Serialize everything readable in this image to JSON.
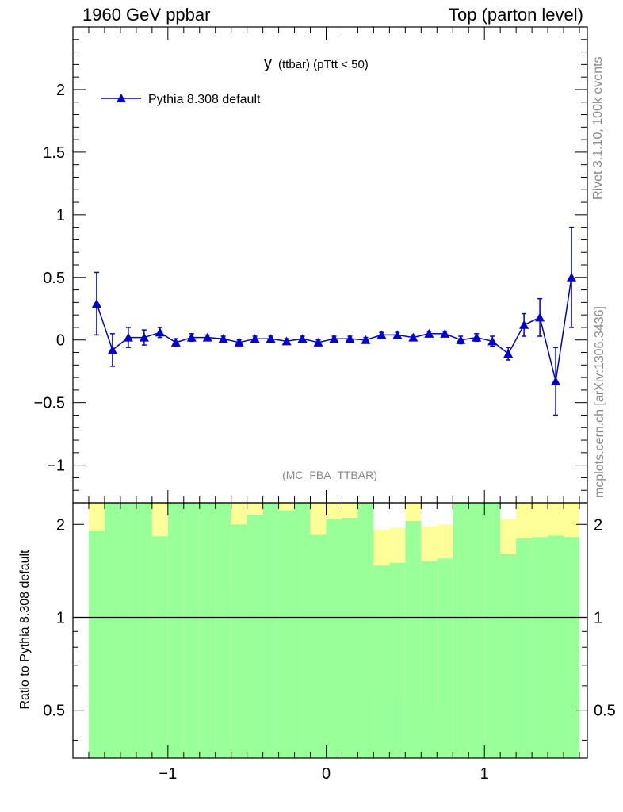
{
  "header": {
    "left": "1960 GeV ppbar",
    "right": "Top (parton level)"
  },
  "side": {
    "top": "Rivet 3.1.10,  100k events",
    "bottom": "mcplots.cern.ch [arXiv:1306.3436]"
  },
  "colors": {
    "series": "#0000cc",
    "band_inner": "#99ff99",
    "band_outer": "#ffff99",
    "axis": "#000000",
    "watermark": "#888888"
  },
  "chart_data": [
    {
      "type": "line",
      "title_main": "y",
      "title_sub": "(ttbar)  (pTtt < 50)",
      "watermark": "(MC_FBA_TTBAR)",
      "legend": "Pythia 8.308 default",
      "legend_position": "top-left",
      "marker": "triangle",
      "xlim": [
        -1.6,
        1.65
      ],
      "ylim": [
        -1.3,
        2.5
      ],
      "yticks": [
        -1,
        -0.5,
        0,
        0.5,
        1,
        1.5,
        2
      ],
      "ytick_labels": [
        "−1",
        "−0.5",
        "0",
        "0.5",
        "1",
        "1.5",
        "2"
      ],
      "series": [
        {
          "name": "Pythia 8.308 default",
          "x": [
            -1.45,
            -1.35,
            -1.25,
            -1.15,
            -1.05,
            -0.95,
            -0.85,
            -0.75,
            -0.65,
            -0.55,
            -0.45,
            -0.35,
            -0.25,
            -0.15,
            -0.05,
            0.05,
            0.15,
            0.25,
            0.35,
            0.45,
            0.55,
            0.65,
            0.75,
            0.85,
            0.95,
            1.05,
            1.15,
            1.25,
            1.35,
            1.45,
            1.55
          ],
          "y": [
            0.29,
            -0.08,
            0.02,
            0.02,
            0.06,
            -0.02,
            0.02,
            0.02,
            0.01,
            -0.02,
            0.01,
            0.01,
            -0.01,
            0.01,
            -0.02,
            0.01,
            0.01,
            0.0,
            0.04,
            0.04,
            0.02,
            0.05,
            0.05,
            0.0,
            0.02,
            -0.01,
            -0.11,
            0.12,
            0.18,
            -0.33,
            0.5
          ],
          "err": [
            0.25,
            0.13,
            0.08,
            0.06,
            0.04,
            0.03,
            0.03,
            0.02,
            0.02,
            0.02,
            0.02,
            0.02,
            0.02,
            0.02,
            0.02,
            0.02,
            0.02,
            0.02,
            0.02,
            0.02,
            0.02,
            0.02,
            0.02,
            0.03,
            0.03,
            0.04,
            0.05,
            0.09,
            0.15,
            0.27,
            0.4
          ]
        }
      ]
    },
    {
      "type": "ratio",
      "ylabel": "Ratio to Pythia 8.308 default",
      "yscale": "log",
      "ylim": [
        0.35,
        2.35
      ],
      "yticks": [
        0.5,
        1,
        2
      ],
      "ytick_labels": [
        "0.5",
        "1",
        "2"
      ],
      "xticks": [
        -1,
        0,
        1
      ],
      "xtick_labels": [
        "−1",
        "0",
        "1"
      ],
      "bins": [
        -1.5,
        -1.4,
        -1.3,
        -1.2,
        -1.1,
        -1.0,
        -0.9,
        -0.8,
        -0.7,
        -0.6,
        -0.5,
        -0.4,
        -0.3,
        -0.2,
        -0.1,
        0.0,
        0.1,
        0.2,
        0.3,
        0.4,
        0.5,
        0.6,
        0.7,
        0.8,
        0.9,
        1.0,
        1.1,
        1.2,
        1.3,
        1.4,
        1.5,
        1.6
      ],
      "inner_hi": [
        1.9,
        2.35,
        2.35,
        2.35,
        1.83,
        2.35,
        2.35,
        2.35,
        2.35,
        2.0,
        2.15,
        2.35,
        2.22,
        2.35,
        1.85,
        2.08,
        2.1,
        2.35,
        1.47,
        1.5,
        2.05,
        1.52,
        1.55,
        2.35,
        2.35,
        2.35,
        1.6,
        1.8,
        1.82,
        1.84,
        1.82
      ],
      "outer_hi": [
        2.35,
        2.35,
        2.35,
        2.35,
        2.35,
        2.35,
        2.35,
        2.35,
        2.35,
        2.35,
        2.35,
        2.35,
        2.35,
        2.35,
        2.35,
        2.35,
        2.35,
        2.35,
        1.92,
        1.95,
        2.35,
        1.97,
        2.0,
        2.35,
        2.35,
        2.35,
        2.35,
        2.35,
        2.35,
        2.35,
        2.35
      ],
      "fill_hi": [
        2.35,
        2.35,
        2.35,
        2.35,
        2.35,
        2.35,
        2.35,
        2.35,
        2.35,
        2.35,
        2.35,
        2.35,
        2.35,
        2.35,
        2.35,
        2.35,
        2.35,
        2.35,
        2.35,
        2.35,
        2.35,
        2.35,
        2.35,
        2.35,
        2.35,
        2.35,
        2.08,
        2.35,
        2.35,
        2.35,
        2.35
      ],
      "inner_lo": [
        0.35,
        0.35,
        0.35,
        0.35,
        0.35,
        0.35,
        0.35,
        0.35,
        0.35,
        0.35,
        0.35,
        0.35,
        0.35,
        0.35,
        0.35,
        0.35,
        0.35,
        0.35,
        0.35,
        0.35,
        0.35,
        0.35,
        0.35,
        0.35,
        0.35,
        0.35,
        0.35,
        0.35,
        0.35,
        0.35,
        0.35
      ],
      "outer_lo": [
        0.35,
        0.35,
        0.35,
        0.35,
        0.35,
        0.35,
        0.35,
        0.35,
        0.35,
        0.35,
        0.35,
        0.35,
        0.35,
        0.35,
        0.35,
        0.35,
        0.35,
        0.35,
        0.58,
        0.55,
        0.35,
        0.52,
        0.49,
        0.35,
        0.35,
        0.35,
        0.43,
        0.35,
        0.35,
        0.35,
        0.35
      ]
    }
  ]
}
